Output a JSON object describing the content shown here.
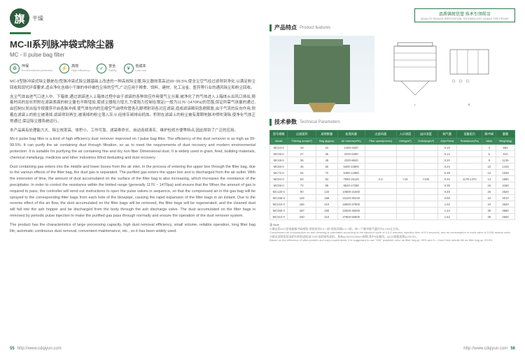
{
  "logo": {
    "char": "旗",
    "sub": "干燥"
  },
  "badge": {
    "line1": "品质铸就信誉 技术引领前沿",
    "line2": "QUALITY BUILDS REPUTATION TECHNOLOGY LEADS THE FRONT"
  },
  "title": {
    "cn": "MC-II系列脉冲袋式除尘器",
    "en": "MC - II pulse bag filter"
  },
  "features": [
    {
      "icon": "♻",
      "cn": "环保",
      "en": "Environmental protection"
    },
    {
      "icon": "⚡",
      "cn": "高效",
      "en": "High efficiency"
    },
    {
      "icon": "✓",
      "cn": "安全",
      "en": "Safety"
    },
    {
      "icon": "¥",
      "cn": "低成本",
      "en": "Low cost"
    }
  ],
  "description": {
    "cn1": "MC-II型脉冲袋式除尘器是在I型脉冲袋式除尘器基础上改进的一种高效除尘器,除尘器效率高达99~99.5%,使含尘空气经过滤得到净化,以满足粉尘回收和现代环保要求,适合净化含细小干燥的非纤维性尘埃的空气,广泛应用于粮食、饲料、建材、化工冶金、医药等行业的通风除尘和粉尘回收。",
    "cn2": "含尘气体由进气口进入中、下箱体,通过滤袋进入上箱体过程中由于滤袋的各种效应作用使气尘分离,被净化了的气体进入上箱体从出风口排出,随着时间的加长积附在滤袋表面的粉尘量也不断增加,使滤尘器阻力增大,为使阻力控制在限定(一般为1176~1470Pa)的范围,保证所需气体量的通过,由控制仪发出指令按顺序开启各脉冲阀,使气体包内的压缩空气由喷吹管各孔眼喷射到各对应滤袋,造成滤袋瞬间急剧膨胀,由于气流的反向作用,附着在滤袋上的粉尘被清掉,滤袋得到再生,被清掉的粉尘落入灰斗,经排灰阀排出机体。积附在滤袋上的粉尘被有周期地脉冲喷吹清除,使净化气体正常通过,保证除尘器系统运行。",
    "cn3": "本产品具有处理能力大、除尘效率高、体积小、工作可靠、滤袋寿命长、自动连续清灰、维护检修方便等特点,因此得到了广泛的应用。",
    "en1": "Mc-ii pulse bag filter is a kind of high efficiency dust remover improved on I pulse bag filter. The efficiency of the dust remover is as high as 99-99.5%. It can purify the air containing dust through filtration, so as to meet the requirements of dust recovery and modern environmental protection. It is suitable for purifying the air containing fine and dry non fiber Dimensional dust. It is widely used in grain, feed, building materials, chemical metallurgy, medicine and other industries Wind dedusting and dust recovery.",
    "en2": "Dust containing gas enters into the middle and lower boxes from the air inlet. In the process of entering the upper box through the filter bag, due to the various effects of the filter bag, the dust gas is separated. The purified gas enters the upper box and is discharged from the air outlet. With the extension of time, the amount of dust accumulated on the surface of the filter bag is also increasing, which increases the resistance of the precipitator. In order to control the resistance within the limited range (generally 1176 ~ 1470pa) and ensure that the When the amount of gas is required to pass, the controller will send out instructions to open the pulse valves in sequence, so that the compressed air in the gas bag will be sprayed to the corresponding filter bags from each hole of the blowpipe, causing the rapid expansion of the filter bags in an instant. Due to the reverse effect of the air flow, the dust accumulated on the filter bags will be removed, the filter bags will be regenerated, and the cleaned dust will fall into the ash hopper and be discharged from the body through the ash discharge valve. The dust accumulated on the filter bags is removed by periodic pulse injection to make the purified gas pass through normally and ensure the operation of the dust remover system.",
    "en3": "The product has the characteristics of large processing capacity, high dust removal efficiency, small volume, reliable operation, long filter bag life, automatic continuous dust removal, convenient maintenance, etc., so it has been widely used."
  },
  "sections": {
    "features": {
      "cn": "产品特点",
      "en": "Product features"
    },
    "params": {
      "cn": "技术参数",
      "en": "Technical Parameters"
    }
  },
  "table": {
    "headers": [
      {
        "cn": "型号规格",
        "en": "Model"
      },
      {
        "cn": "过滤面积",
        "en": "Filtering area(m²)"
      },
      {
        "cn": "滤袋数量",
        "en": "Bag qty(pcs)"
      },
      {
        "cn": "处理风量",
        "en": "Air volume(m³/h)"
      },
      {
        "cn": "过滤风速",
        "en": "Filter speed(m/min)"
      },
      {
        "cn": "入口浓度",
        "en": "Inlet(g/m³)"
      },
      {
        "cn": "出口浓度",
        "en": "Outlet(mg/m³)"
      },
      {
        "cn": "耗气量",
        "en": "Air(m³/min)"
      },
      {
        "cn": "设备阻力",
        "en": "Resistance(Pa)"
      },
      {
        "cn": "脉冲阀",
        "en": "Valve"
      },
      {
        "cn": "重量",
        "en": "Weight(kg)"
      }
    ],
    "rows": [
      [
        "MC24-II",
        "18",
        "24",
        "2160-4320",
        "",
        "",
        "",
        "0.10",
        "",
        "4",
        "682"
      ],
      [
        "MC36-II",
        "27",
        "36",
        "3240-6480",
        "",
        "",
        "",
        "0.14",
        "",
        "6",
        "910"
      ],
      [
        "MC48-II",
        "36",
        "48",
        "4320-8640",
        "",
        "",
        "",
        "0.20",
        "",
        "8",
        "1135"
      ],
      [
        "MC60-II",
        "45",
        "60",
        "5400-10800",
        "",
        "",
        "",
        "0.24",
        "",
        "10",
        "1415"
      ],
      [
        "MC72-II",
        "54",
        "72",
        "6480-12960",
        "",
        "",
        "",
        "0.29",
        "",
        "12",
        "1635"
      ],
      [
        "MC84-II",
        "63",
        "84",
        "7560-15120",
        "2-4",
        "<15",
        "<100",
        "0.34",
        "1176-1470",
        "14",
        "1860"
      ],
      [
        "MC96-II",
        "72",
        "96",
        "8640-17280",
        "",
        "",
        "",
        "0.39",
        "",
        "16",
        "2160"
      ],
      [
        "MC120-II",
        "90",
        "120",
        "10800-21600",
        "",
        "",
        "",
        "0.49",
        "",
        "20",
        "2520"
      ],
      [
        "MC168-II",
        "126",
        "168",
        "15120-30240",
        "",
        "",
        "",
        "0.69",
        "",
        "24",
        "3010"
      ],
      [
        "MC210-II",
        "155",
        "210",
        "18900-37800",
        "",
        "",
        "",
        "1.02",
        "",
        "24",
        "3520"
      ],
      [
        "MC250-II",
        "187",
        "250",
        "22500-45000",
        "",
        "",
        "",
        "1.24",
        "",
        "30",
        "3960"
      ],
      [
        "MC310-II",
        "230",
        "310",
        "27900-55800",
        "",
        "",
        "",
        "1.52",
        "",
        "36",
        "4500"
      ]
    ]
  },
  "note": {
    "title": "注 Note",
    "lines": [
      "①建议用DCII型电磁脉冲阀喷吹,喷吹时间0.5~2秒,喷吹间隔0.5~2秒。每一个脉冲耗气量约为0.035立方米。",
      "Compressed air consumption for ash cleaning is calculated according to the injection cycle of 0.5-2 minutes, injection time of 0.5 seconds, and air consumption of each valve is 0.035 meters cube.",
      "②建议滤袋采用涤纶针刺毡滤料或\"208\"涤纶绒布滤料。具有φ=96X2000mm规格,其中5支备用。φ120规格滤袋φ=96-5X。",
      "Based on the efficiency of silica powder and copy experiments, it is suggested to use \"208\" polyester velor as filter bag φ= 99% and 5 = 2mm thick needle felt as filter bag φ= 99.5%"
    ]
  },
  "footer": {
    "url": "http://www.cdqiyun.com",
    "left_page": "55",
    "right_page": "56"
  }
}
